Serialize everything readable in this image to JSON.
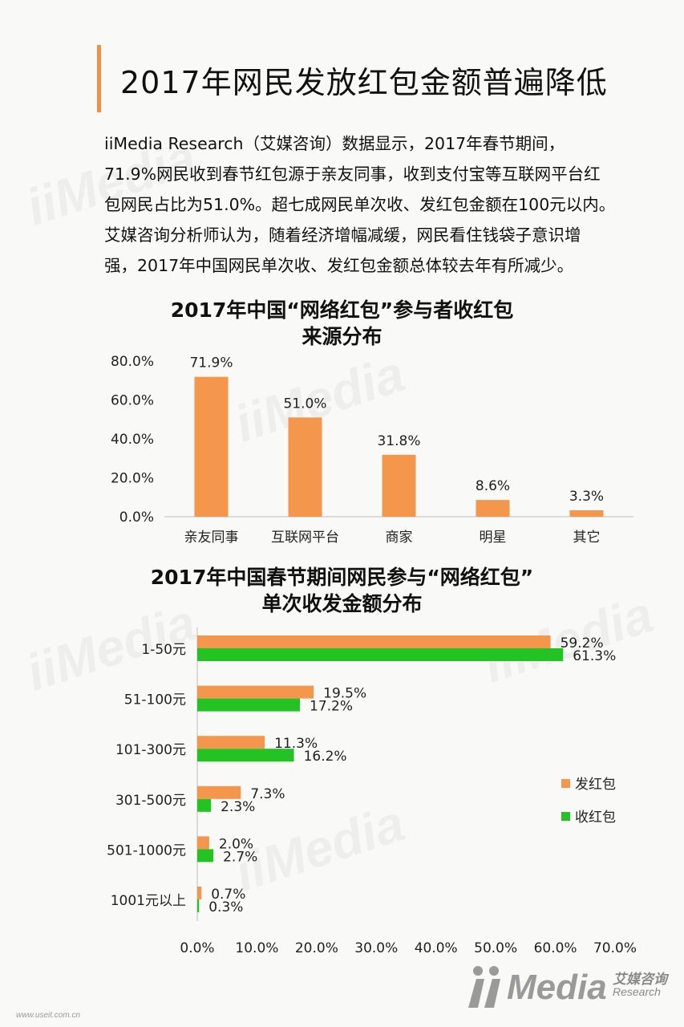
{
  "page": {
    "title": "2017年网民发放红包金额普遍降低",
    "paragraph": [
      "iiMedia Research（艾媒咨询）数据显示，2017年春节期间，",
      "71.9%网民收到春节红包源于亲友同事，收到支付宝等互联网平台红",
      "包网民占比为51.0%。超七成网民单次收、发红包金额在100元以内。",
      "艾媒咨询分析师认为，随着经济增幅减缓，网民看住钱袋子意识增",
      "强，2017年中国网民单次收、发红包金额总体较去年有所减少。"
    ]
  },
  "chart_data": [
    {
      "type": "bar",
      "title": [
        "2017年中国“网络红包”参与者收红包",
        "来源分布"
      ],
      "categories": [
        "亲友同事",
        "互联网平台",
        "商家",
        "明星",
        "其它"
      ],
      "values": [
        71.9,
        51.0,
        31.8,
        8.6,
        3.3
      ],
      "value_labels": [
        "71.9%",
        "51.0%",
        "31.8%",
        "8.6%",
        "3.3%"
      ],
      "y_ticks": [
        "80.0%",
        "60.0%",
        "40.0%",
        "20.0%",
        "0.0%"
      ],
      "ylim": [
        0,
        80
      ],
      "color": "#f4974c",
      "grid": false
    },
    {
      "type": "bar",
      "orientation": "horizontal",
      "title": [
        "2017年中国春节期间网民参与“网络红包”",
        "单次收发金额分布"
      ],
      "categories": [
        "1-50元",
        "51-100元",
        "101-300元",
        "301-500元",
        "501-1000元",
        "1001元以上"
      ],
      "series": [
        {
          "name": "发红包",
          "color": "#f4974c",
          "values": [
            59.2,
            19.5,
            11.3,
            7.3,
            2.0,
            0.7
          ],
          "labels": [
            "59.2%",
            "19.5%",
            "11.3%",
            "7.3%",
            "2.0%",
            "0.7%"
          ]
        },
        {
          "name": "收红包",
          "color": "#22c322",
          "values": [
            61.3,
            17.2,
            16.2,
            2.3,
            2.7,
            0.3
          ],
          "labels": [
            "61.3%",
            "17.2%",
            "16.2%",
            "2.3%",
            "2.7%",
            "0.3%"
          ]
        }
      ],
      "x_ticks": [
        "0.0%",
        "10.0%",
        "20.0%",
        "30.0%",
        "40.0%",
        "50.0%",
        "60.0%",
        "70.0%"
      ],
      "xlim": [
        0,
        70
      ],
      "legend_position": "right",
      "grid": false
    }
  ],
  "branding": {
    "logo_word": "Media",
    "logo_cn": "艾媒咨询",
    "logo_en": "Research",
    "footer_url": "www.useit.com.cn"
  }
}
